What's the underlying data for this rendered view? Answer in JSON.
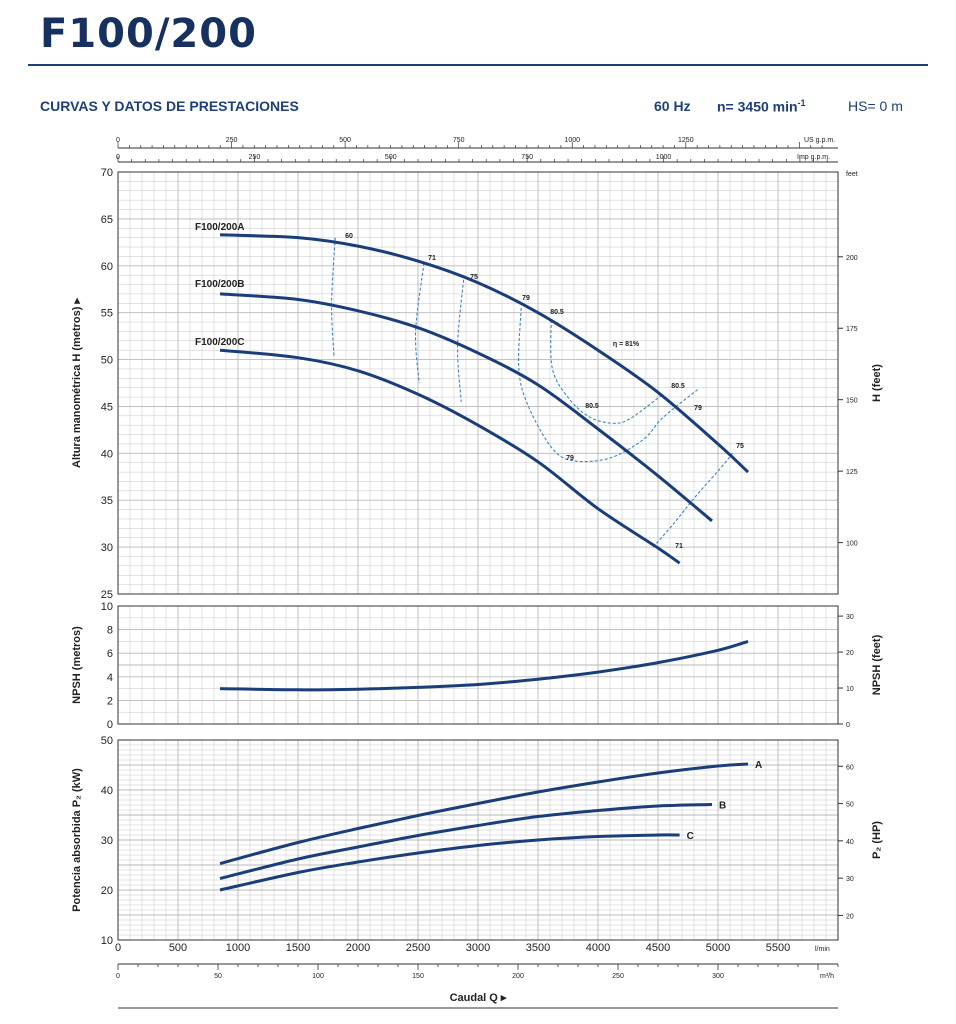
{
  "header": {
    "title": "F100/200",
    "section_title": "CURVAS Y DATOS DE PRESTACIONES",
    "frequency": "60 Hz",
    "speed": "n= 3450 min",
    "speed_sup": "-1",
    "hs": "HS= 0 m"
  },
  "chart_data": {
    "type": "line",
    "x_axis": {
      "label": "Caudal Q",
      "unit": "l/min",
      "range": [
        0,
        6000
      ],
      "ticks": [
        "0",
        "500",
        "1000",
        "1500",
        "2000",
        "2500",
        "3000",
        "3500",
        "4000",
        "4500",
        "5000",
        "5500"
      ]
    },
    "secondary_x_axes": [
      {
        "unit": "US g.p.m.",
        "ticks": [
          "0",
          "250",
          "500",
          "750",
          "1000",
          "1250"
        ]
      },
      {
        "unit": "Imp g.p.m.",
        "ticks": [
          "0",
          "250",
          "500",
          "750",
          "1000"
        ]
      },
      {
        "unit": "m³/h",
        "ticks": [
          "0",
          "50",
          "100",
          "150",
          "200",
          "250",
          "300"
        ]
      }
    ],
    "head": {
      "ylabel": "Altura manométrica H  (metros)",
      "ylim": [
        25,
        70
      ],
      "ticks": [
        "25",
        "30",
        "35",
        "40",
        "45",
        "50",
        "55",
        "60",
        "65",
        "70"
      ],
      "right_label": "H  (feet)",
      "right_unit": "feet",
      "right_ticks": [
        "100",
        "125",
        "150",
        "175",
        "200"
      ],
      "series": [
        {
          "name": "F100/200A",
          "x": [
            850,
            1500,
            2000,
            2500,
            3000,
            3500,
            4000,
            4500,
            5000,
            5250
          ],
          "y": [
            63.3,
            63.0,
            62.1,
            60.5,
            58.2,
            55.0,
            51.0,
            46.5,
            41.0,
            38.0
          ]
        },
        {
          "name": "F100/200B",
          "x": [
            850,
            1500,
            2000,
            2500,
            3000,
            3500,
            4000,
            4500,
            4950
          ],
          "y": [
            57.0,
            56.4,
            55.2,
            53.4,
            50.7,
            47.3,
            42.6,
            37.6,
            32.8
          ]
        },
        {
          "name": "F100/200C",
          "x": [
            850,
            1500,
            2000,
            2500,
            3000,
            3500,
            4000,
            4500,
            4680
          ],
          "y": [
            51.0,
            50.2,
            48.8,
            46.3,
            43.0,
            39.1,
            34.1,
            29.9,
            28.3
          ]
        }
      ],
      "efficiency_labels": [
        "60",
        "71",
        "75",
        "79",
        "80.5",
        "η = 81%",
        "80.5",
        "79",
        "75",
        "80.5",
        "79",
        "71"
      ],
      "efficiency_contours": [
        {
          "label": "60",
          "x": [
            1810,
            1780,
            1800
          ],
          "y": [
            63,
            56,
            50.3
          ]
        },
        {
          "label": "71",
          "x": [
            2550,
            2480,
            2510
          ],
          "y": [
            60.3,
            53,
            47.5
          ]
        },
        {
          "label": "75",
          "x": [
            2880,
            2830,
            2860
          ],
          "y": [
            58.5,
            51.5,
            45.5
          ]
        },
        {
          "label": "79",
          "x": [
            3360,
            3340,
            3420,
            3620,
            3800,
            4100,
            4380,
            4540,
            4830
          ],
          "y": [
            55.5,
            49,
            45,
            40.5,
            39.2,
            39.5,
            41.5,
            43.8,
            46.8
          ]
        },
        {
          "label": "80.5",
          "x": [
            3610,
            3620,
            3760,
            3940,
            4140,
            4280,
            4540
          ],
          "y": [
            54.2,
            49,
            45.8,
            43.8,
            43.2,
            43.8,
            46.3
          ]
        },
        {
          "label": "75",
          "x": [
            4460,
            4630,
            4820,
            5040,
            5130
          ],
          "y": [
            30,
            32.5,
            35.5,
            38.7,
            40.2
          ]
        }
      ]
    },
    "npsh": {
      "ylabel": "NPSH  (metros)",
      "ylim": [
        0,
        10
      ],
      "ticks": [
        "0",
        "2",
        "4",
        "6",
        "8",
        "10"
      ],
      "right_label": "NPSH  (feet)",
      "right_ticks": [
        "0",
        "10",
        "20",
        "30"
      ],
      "series": [
        {
          "name": "NPSH",
          "x": [
            850,
            1500,
            2000,
            2500,
            3000,
            3500,
            4000,
            4500,
            5000,
            5250
          ],
          "y": [
            3.0,
            2.9,
            2.95,
            3.1,
            3.35,
            3.8,
            4.4,
            5.2,
            6.25,
            7.0
          ]
        }
      ]
    },
    "power": {
      "ylabel": "Potencia absorbida P₂  (kW)",
      "ylim": [
        10,
        50
      ],
      "ticks": [
        "10",
        "20",
        "30",
        "40",
        "50"
      ],
      "right_label": "P₂  (HP)",
      "right_ticks": [
        "20",
        "30",
        "40",
        "50",
        "60"
      ],
      "series": [
        {
          "name": "A",
          "x": [
            850,
            1500,
            2000,
            2500,
            3000,
            3500,
            4000,
            4500,
            5000,
            5250
          ],
          "y": [
            25.3,
            29.5,
            32.3,
            34.9,
            37.3,
            39.6,
            41.6,
            43.4,
            44.8,
            45.2
          ]
        },
        {
          "name": "B",
          "x": [
            850,
            1500,
            2000,
            2500,
            3000,
            3500,
            4000,
            4500,
            4950
          ],
          "y": [
            22.3,
            26.2,
            28.6,
            30.9,
            32.9,
            34.7,
            35.9,
            36.8,
            37.1
          ]
        },
        {
          "name": "C",
          "x": [
            850,
            1500,
            2000,
            2500,
            3000,
            3500,
            4000,
            4500,
            4680
          ],
          "y": [
            20.0,
            23.5,
            25.6,
            27.4,
            28.9,
            30.0,
            30.7,
            31.0,
            31.0
          ]
        }
      ]
    },
    "grid": true,
    "colors": {
      "curve": "#1b3e7a",
      "efficiency": "#3b86c8",
      "grid": "#b9b9b9"
    }
  }
}
